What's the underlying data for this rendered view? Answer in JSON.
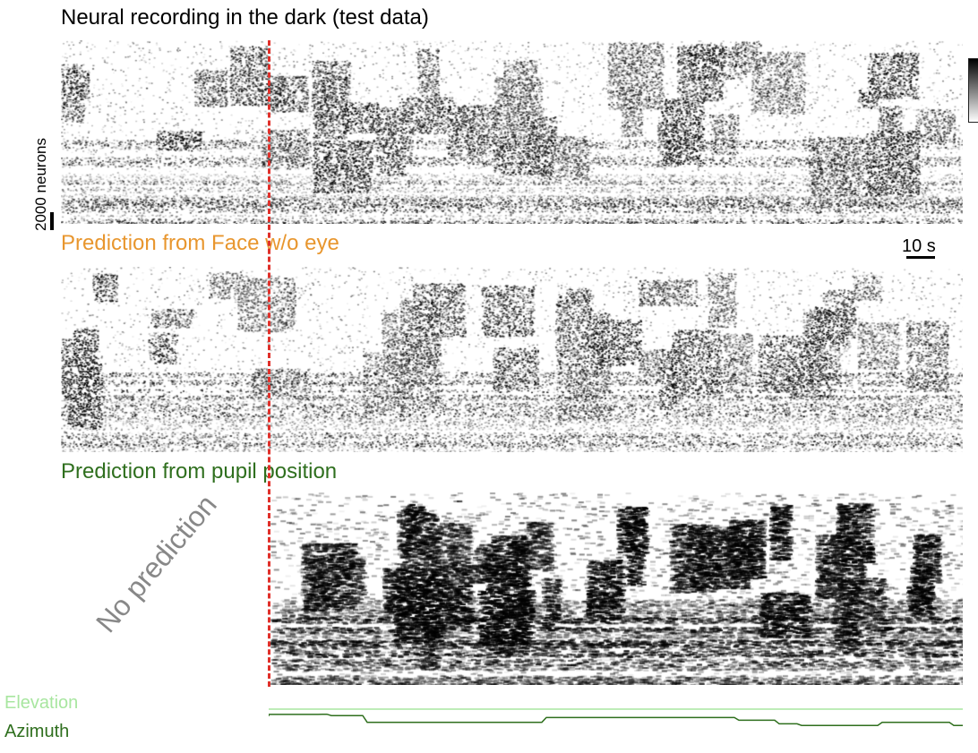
{
  "panels": {
    "recording_title": "Neural recording in the dark (test data)",
    "face_title": "Prediction from Face w/o eye",
    "pupil_title": "Prediction from pupil position",
    "no_prediction": "No prediction"
  },
  "scale": {
    "neurons_label": "2000 neurons",
    "time_label": "10 s"
  },
  "legend": {
    "elevation": "Elevation",
    "azimuth": "Azimuth"
  },
  "colors": {
    "recording_title": "#000000",
    "face_title": "#e8962e",
    "pupil_title": "#2f6f1e",
    "elevation": "#a8e6a0",
    "azimuth": "#2f6f1e",
    "split_line": "#e0302a"
  },
  "colormap": "gray_r"
}
